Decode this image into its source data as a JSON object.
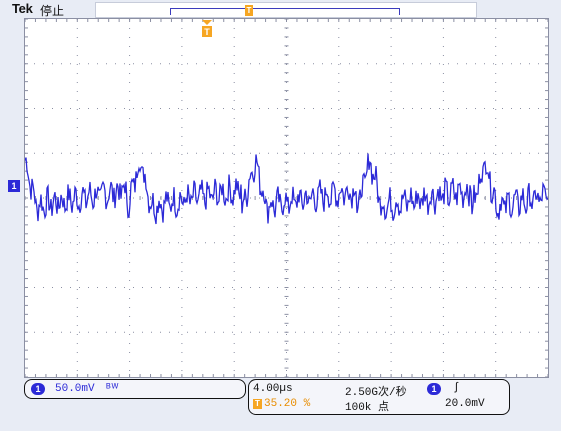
{
  "header": {
    "brand": "Tek",
    "acquisition_state": "停止"
  },
  "markers": {
    "trigger_position": "T",
    "record_marker": "T",
    "channel_marker": "1"
  },
  "channel": {
    "badge": "1",
    "scale": "50.0mV",
    "bandwidth_symbol": "ᴮᵂ"
  },
  "timebase": {
    "scale": "4.00µs",
    "trigger_marker": "T",
    "trigger_position_percent": "35.20 %",
    "sample_rate": "2.50G次/秒",
    "record_length": "100k 点"
  },
  "trigger": {
    "badge": "1",
    "slope_symbol": "∫",
    "level": "20.0mV"
  },
  "colors": {
    "trace": "#2c2ad7",
    "trigger": "#f6a623",
    "grid": "#8b8fa3"
  },
  "trace_meta": {
    "period_divisions": 2.2,
    "amplitude_divisions": 0.6
  }
}
